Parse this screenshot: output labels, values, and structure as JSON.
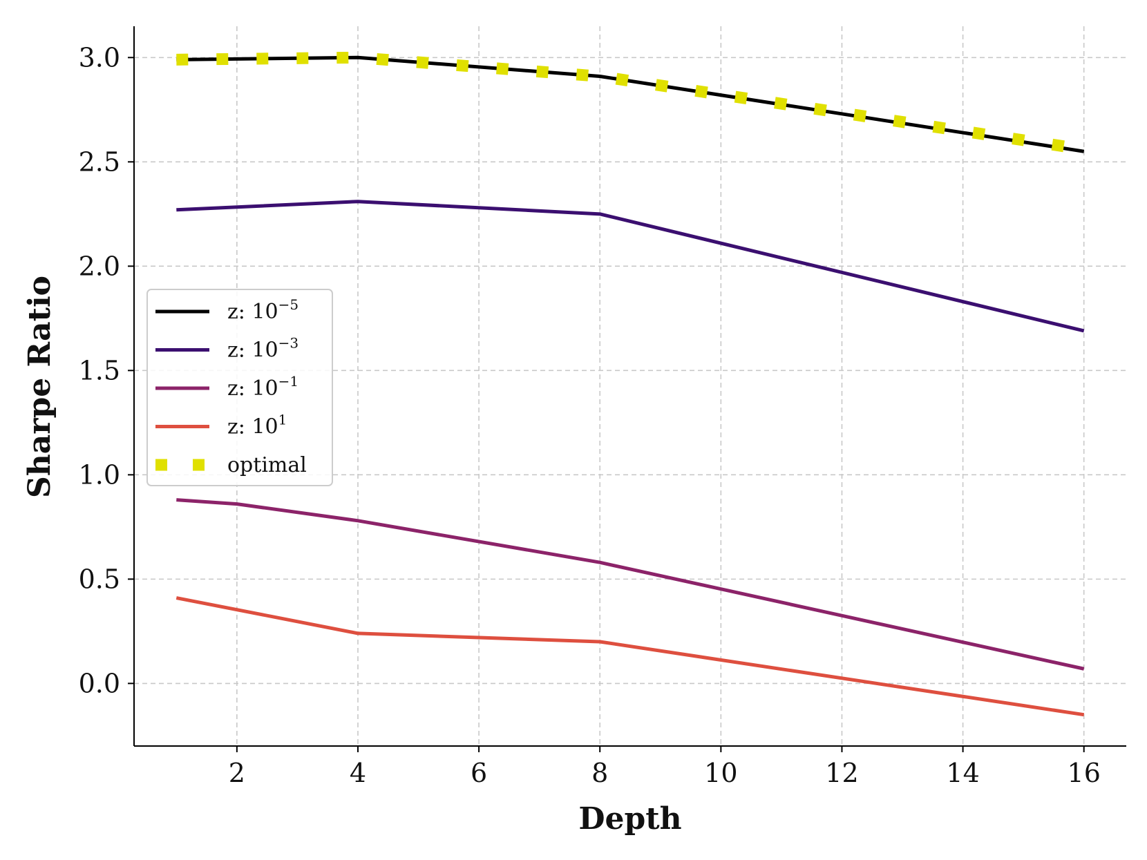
{
  "chart_data": {
    "type": "line",
    "title": "",
    "xlabel": "Depth",
    "ylabel": "Sharpe Ratio",
    "xlim": [
      0.3,
      16.7
    ],
    "ylim": [
      -0.3,
      3.15
    ],
    "xticks": [
      2,
      4,
      6,
      8,
      10,
      12,
      14,
      16
    ],
    "xtick_labels": [
      "2",
      "4",
      "6",
      "8",
      "10",
      "12",
      "14",
      "16"
    ],
    "yticks": [
      0.0,
      0.5,
      1.0,
      1.5,
      2.0,
      2.5,
      3.0
    ],
    "ytick_labels": [
      "0.0",
      "0.5",
      "1.0",
      "1.5",
      "2.0",
      "2.5",
      "3.0"
    ],
    "grid": true,
    "legend_position": "center-left",
    "series": [
      {
        "key": "z5",
        "name_base": "z: 10",
        "name_exp": "−5",
        "color": "#000000",
        "style": "solid",
        "x": [
          1,
          4,
          8,
          16
        ],
        "y": [
          2.99,
          3.0,
          2.91,
          2.55
        ]
      },
      {
        "key": "z3",
        "name_base": "z: 10",
        "name_exp": "−3",
        "color": "#3b0f70",
        "style": "solid",
        "x": [
          1,
          4,
          8,
          16
        ],
        "y": [
          2.27,
          2.31,
          2.25,
          1.69
        ]
      },
      {
        "key": "z1",
        "name_base": "z: 10",
        "name_exp": "−1",
        "color": "#8c2369",
        "style": "solid",
        "x": [
          1,
          2,
          4,
          8,
          16
        ],
        "y": [
          0.88,
          0.86,
          0.78,
          0.58,
          0.07
        ]
      },
      {
        "key": "zp1",
        "name_base": "z: 10",
        "name_exp": "1",
        "color": "#de4f3f",
        "style": "solid",
        "x": [
          1,
          4,
          8,
          16
        ],
        "y": [
          0.41,
          0.24,
          0.2,
          -0.15
        ]
      },
      {
        "key": "optimal",
        "name_base": "optimal",
        "name_exp": "",
        "color": "#e0e000",
        "style": "dotted",
        "x": [
          1,
          4,
          8,
          16
        ],
        "y": [
          2.99,
          3.0,
          2.91,
          2.56
        ]
      }
    ]
  }
}
